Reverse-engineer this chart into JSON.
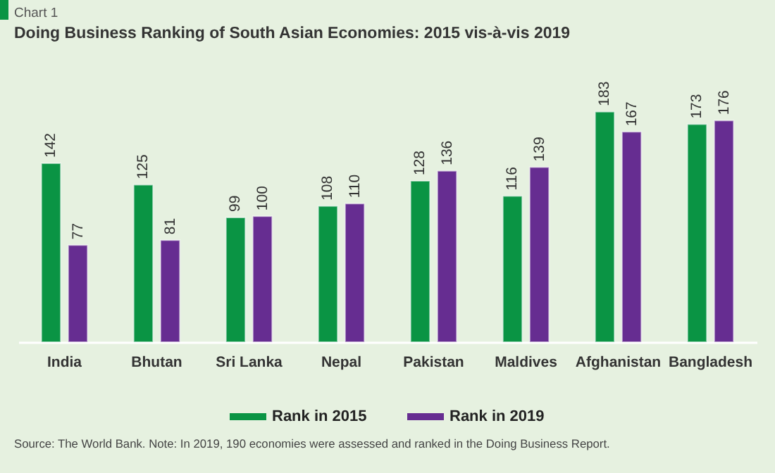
{
  "chart_data": {
    "type": "bar",
    "title": "Doing Business Ranking of South Asian Economies: 2015 vis-à-vis 2019",
    "annotations": [
      "Chart 1",
      "Source: The World Bank. Note: In 2019, 190 economies were assessed and ranked in the Doing Business Report."
    ],
    "categories": [
      "India",
      "Bhutan",
      "Sri Lanka",
      "Nepal",
      "Pakistan",
      "Maldives",
      "Afghanistan",
      "Bangladesh"
    ],
    "series": [
      {
        "name": "Rank in 2015",
        "color": "#0a9444",
        "values": [
          142,
          125,
          99,
          108,
          128,
          116,
          183,
          173
        ]
      },
      {
        "name": "Rank in 2019",
        "color": "#662d91",
        "values": [
          77,
          81,
          100,
          110,
          136,
          139,
          167,
          176
        ]
      }
    ],
    "data_labels": true,
    "legend": "bottom",
    "tick_labels": "x"
  }
}
